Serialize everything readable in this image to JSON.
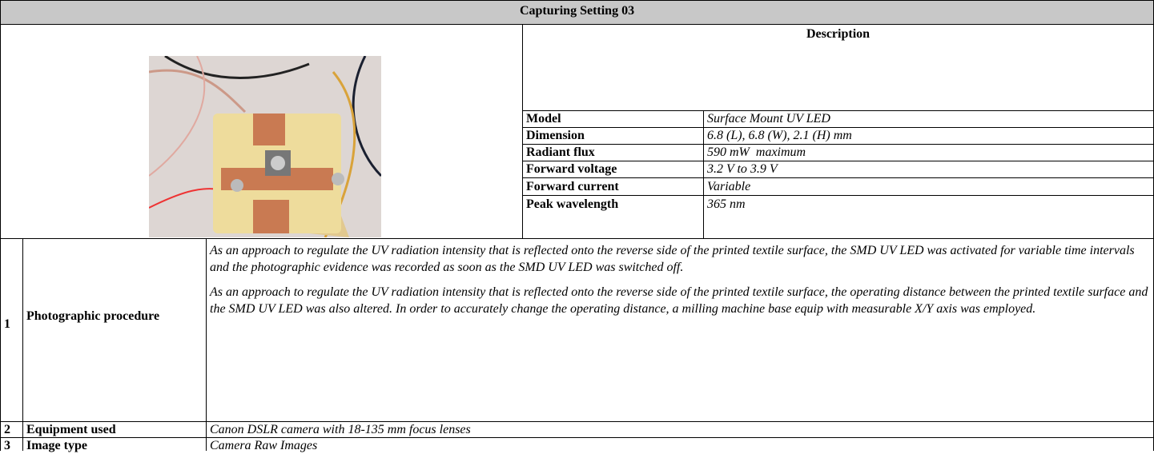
{
  "header": {
    "title": "Capturing Setting 03"
  },
  "description": {
    "title": "Description",
    "rows": [
      [
        "Model",
        "Surface Mount UV LED"
      ],
      [
        "Dimension",
        "6.8 (L), 6.8 (W), 2.1 (H) mm"
      ],
      [
        "Radiant flux",
        "590 mW  maximum"
      ],
      [
        "Forward voltage",
        "3.2 V to 3.9 V"
      ],
      [
        "Forward current",
        "Variable"
      ],
      [
        "Peak wavelength",
        "365 nm"
      ]
    ]
  },
  "table": {
    "rows": [
      {
        "number": "1",
        "label": "Photographic procedure",
        "paragraphs": [
          "As an approach to regulate the UV radiation intensity that is reflected onto the reverse side of the printed textile surface, the SMD UV LED was activated for variable time intervals and the photographic evidence was recorded as soon as the SMD UV LED was switched off.",
          "As an approach to regulate the UV radiation intensity that is reflected onto the reverse side of the printed textile surface, the operating distance between the printed textile surface and the SMD UV LED was also altered. In order to accurately change the operating distance, a milling machine base equip with measurable X/Y axis was employed."
        ]
      },
      {
        "number": "2",
        "label": "Equipment used",
        "paragraphs": [
          "Canon DSLR camera with 18-135 mm focus lenses"
        ]
      },
      {
        "number": "3",
        "label": "Image type",
        "paragraphs": [
          "Camera Raw Images"
        ]
      }
    ]
  }
}
